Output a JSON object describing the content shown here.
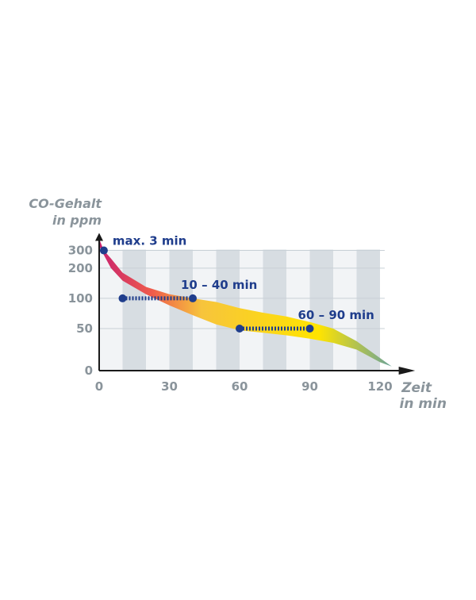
{
  "chart_data": {
    "type": "area",
    "ylabel_line1": "CO-Gehalt",
    "ylabel_line2": "in ppm",
    "xlabel_line1": "Zeit",
    "xlabel_line2": "in min",
    "x_ticks": [
      0,
      30,
      60,
      90,
      120
    ],
    "y_ticks": [
      0,
      50,
      100,
      200,
      300
    ],
    "band_upper": [
      [
        0,
        390
      ],
      [
        2,
        300
      ],
      [
        5,
        250
      ],
      [
        10,
        180
      ],
      [
        20,
        130
      ],
      [
        30,
        110
      ],
      [
        40,
        100
      ],
      [
        50,
        92
      ],
      [
        60,
        80
      ],
      [
        70,
        72
      ],
      [
        80,
        66
      ],
      [
        90,
        58
      ],
      [
        100,
        50
      ],
      [
        110,
        35
      ],
      [
        120,
        15
      ],
      [
        125,
        5
      ]
    ],
    "band_lower": [
      [
        125,
        5
      ],
      [
        120,
        10
      ],
      [
        110,
        25
      ],
      [
        100,
        33
      ],
      [
        90,
        38
      ],
      [
        80,
        42
      ],
      [
        70,
        45
      ],
      [
        60,
        48
      ],
      [
        50,
        55
      ],
      [
        40,
        68
      ],
      [
        30,
        85
      ],
      [
        20,
        110
      ],
      [
        10,
        150
      ],
      [
        5,
        200
      ],
      [
        2,
        270
      ],
      [
        0,
        330
      ]
    ],
    "annotations": [
      {
        "label": "max. 3 min",
        "points": [
          [
            2,
            300
          ]
        ],
        "dotted": false
      },
      {
        "label": "10 – 40 min",
        "points": [
          [
            10,
            100
          ],
          [
            40,
            100
          ]
        ],
        "dotted": true
      },
      {
        "label": "60 – 90 min",
        "points": [
          [
            60,
            50
          ],
          [
            90,
            50
          ]
        ],
        "dotted": true
      }
    ],
    "colors": {
      "marker": "#1f3d8c",
      "axis": "#8a949b",
      "grid": "#c8d0d6",
      "band_light": "#f2f4f6",
      "band_dark": "#d7dde2",
      "gradient": [
        "#c8226f",
        "#ef5b4b",
        "#f7c43c",
        "#ffe400",
        "#6aa39a"
      ]
    }
  }
}
